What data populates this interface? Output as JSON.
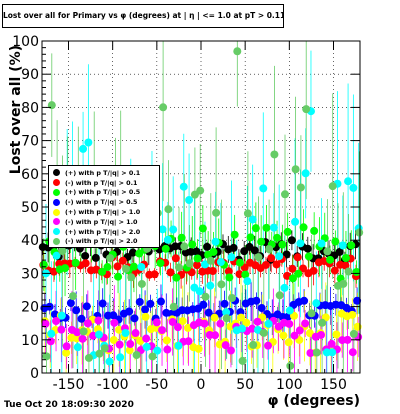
{
  "chart_data": {
    "type": "scatter",
    "title": "Lost over all for Primary vs φ (degrees) at | η | <= 1.0 at pT > 0.11",
    "xlabel": "φ (degrees)",
    "ylabel": "Lost over all (%)",
    "xlim": [
      -180,
      180
    ],
    "ylim": [
      0,
      100
    ],
    "x_ticks": [
      "-150",
      "-100",
      "-50",
      "0",
      "50",
      "100",
      "150"
    ],
    "y_ticks": [
      "0",
      "10",
      "20",
      "30",
      "40",
      "50",
      "60",
      "70",
      "80",
      "90",
      "100"
    ],
    "legend_placement": "middle-left",
    "series": [
      {
        "name": "(+) with p T/|q| > 0.1",
        "color": "#000000",
        "level": 37,
        "spread": 3,
        "err": 3
      },
      {
        "name": "(-) with p T/|q| > 0.1",
        "color": "#ff0000",
        "level": 32,
        "spread": 3,
        "err": 3
      },
      {
        "name": "(+) with p T/|q| > 0.5",
        "color": "#00ff00",
        "level": 36,
        "spread": 8,
        "err": 6
      },
      {
        "name": "(-) with p T/|q| > 0.5",
        "color": "#0000ff",
        "level": 19,
        "spread": 3,
        "err": 4
      },
      {
        "name": "(+) with p T/|q| > 1.0",
        "color": "#ffff00",
        "level": 12,
        "spread": 6,
        "err": 8
      },
      {
        "name": "(-) with p T/|q| > 1.0",
        "color": "#ff00ff",
        "level": 11,
        "spread": 5,
        "err": 8
      },
      {
        "name": "(+) with p T/|q| > 2.0",
        "color": "#00ffff",
        "level": 30,
        "spread": 28,
        "err": 20
      },
      {
        "name": "(-) with p T/|q| > 2.0",
        "color": "#66cc66",
        "level": 30,
        "spread": 28,
        "err": 20
      }
    ]
  },
  "footer": {
    "date": "Tue Oct 20 18:09:30 2020"
  }
}
